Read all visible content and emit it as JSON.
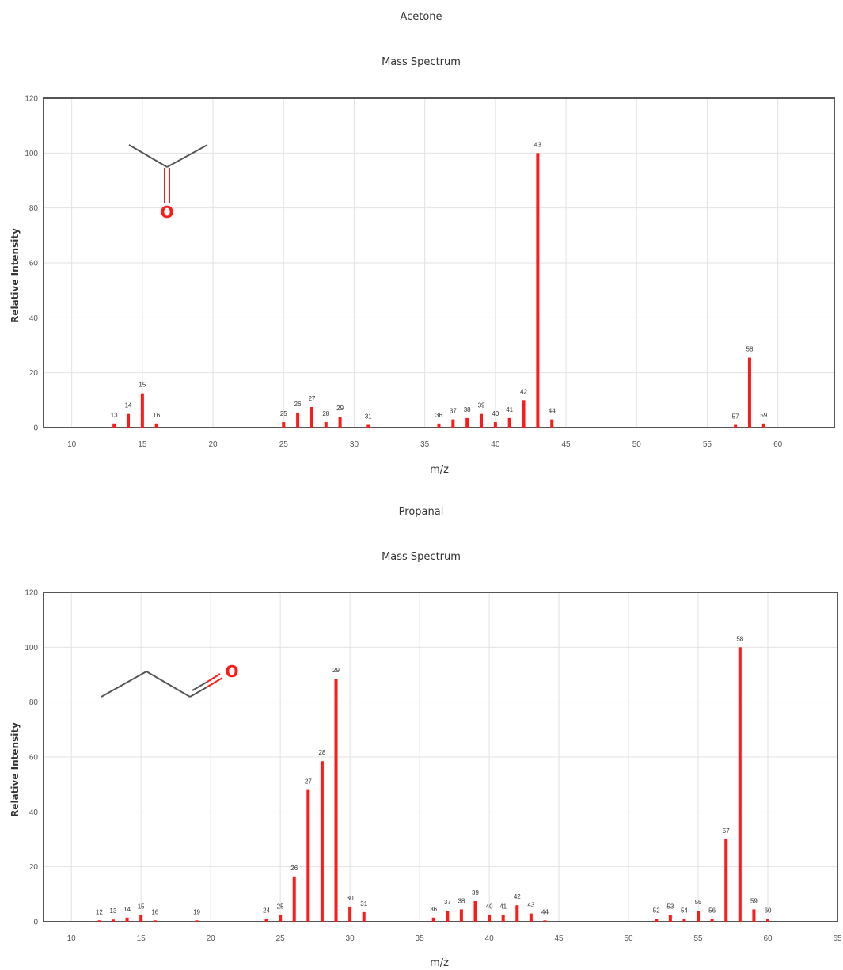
{
  "chart_data": [
    {
      "type": "bar",
      "title": "Acetone",
      "subtitle": "Mass Spectrum",
      "xlabel": "m/z",
      "ylabel": "Relative Intensity",
      "xlim": [
        8,
        64
      ],
      "ylim": [
        0,
        120
      ],
      "xticks": [
        10,
        15,
        20,
        25,
        30,
        35,
        40,
        45,
        50,
        55,
        60
      ],
      "yticks": [
        0,
        20,
        40,
        60,
        80,
        100,
        120
      ],
      "grid": true,
      "bar_color": "#ff1a1a",
      "structure": {
        "atom_label": "O"
      },
      "x": [
        13,
        14,
        15,
        16,
        25,
        26,
        27,
        28,
        29,
        31,
        36,
        37,
        38,
        39,
        40,
        41,
        42,
        43,
        44,
        57,
        58,
        59
      ],
      "values": [
        1.5,
        5,
        12.5,
        1.5,
        2,
        5.5,
        7.5,
        2,
        4,
        1,
        1.5,
        3,
        3.5,
        5,
        2,
        3.5,
        10,
        100,
        3,
        1,
        25.5,
        1.5
      ]
    },
    {
      "type": "bar",
      "title": "Propanal",
      "subtitle": "Mass Spectrum",
      "xlabel": "m/z",
      "ylabel": "Relative Intensity",
      "xlim": [
        8,
        65
      ],
      "ylim": [
        0,
        120
      ],
      "xticks": [
        10,
        15,
        20,
        25,
        30,
        35,
        40,
        45,
        50,
        55,
        60,
        65
      ],
      "yticks": [
        0,
        20,
        40,
        60,
        80,
        100,
        120
      ],
      "grid": true,
      "bar_color": "#ff1a1a",
      "structure": {
        "atom_label": "O"
      },
      "x": [
        12,
        13,
        14,
        15,
        16,
        19,
        24,
        25,
        26,
        27,
        28,
        29,
        30,
        31,
        36,
        37,
        38,
        39,
        40,
        41,
        42,
        43,
        44,
        52,
        53,
        54,
        55,
        56,
        57,
        58,
        59,
        60
      ],
      "values": [
        0.5,
        0.8,
        1.5,
        2.5,
        0.5,
        0.5,
        1,
        2.5,
        16.5,
        48,
        58.5,
        88.5,
        5.5,
        3.5,
        1.5,
        4,
        4.5,
        7.5,
        2.5,
        2.5,
        6,
        3,
        0.5,
        1,
        2.5,
        1,
        4,
        1,
        30,
        100,
        4.5,
        1
      ]
    }
  ]
}
